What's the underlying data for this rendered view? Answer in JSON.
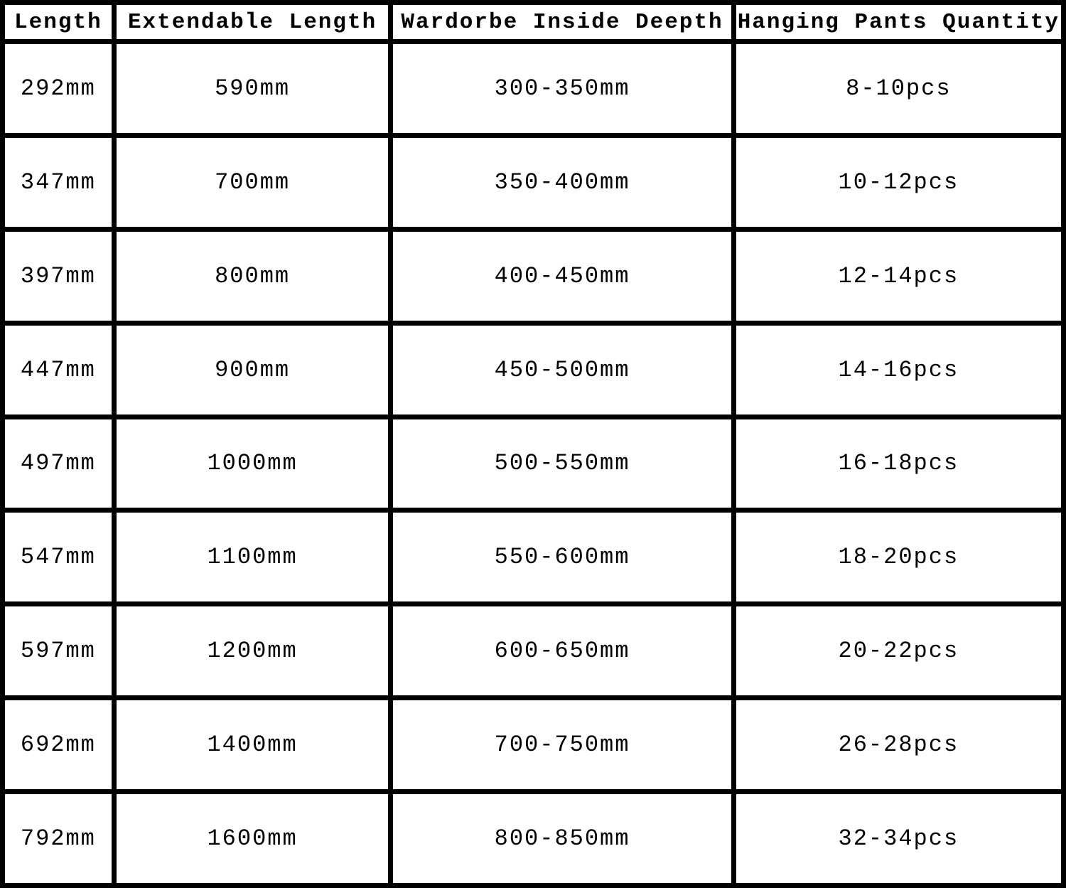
{
  "table": {
    "headers": [
      "Length",
      "Extendable Length",
      "Wardorbe Inside Deepth",
      "Hanging Pants Quantity"
    ],
    "rows": [
      [
        "292mm",
        "590mm",
        "300-350mm",
        "8-10pcs"
      ],
      [
        "347mm",
        "700mm",
        "350-400mm",
        "10-12pcs"
      ],
      [
        "397mm",
        "800mm",
        "400-450mm",
        "12-14pcs"
      ],
      [
        "447mm",
        "900mm",
        "450-500mm",
        "14-16pcs"
      ],
      [
        "497mm",
        "1000mm",
        "500-550mm",
        "16-18pcs"
      ],
      [
        "547mm",
        "1100mm",
        "550-600mm",
        "18-20pcs"
      ],
      [
        "597mm",
        "1200mm",
        "600-650mm",
        "20-22pcs"
      ],
      [
        "692mm",
        "1400mm",
        "700-750mm",
        "26-28pcs"
      ],
      [
        "792mm",
        "1600mm",
        "800-850mm",
        "32-34pcs"
      ]
    ]
  },
  "colors": {
    "border": "#000000",
    "background": "#ffffff",
    "text": "#000000"
  }
}
